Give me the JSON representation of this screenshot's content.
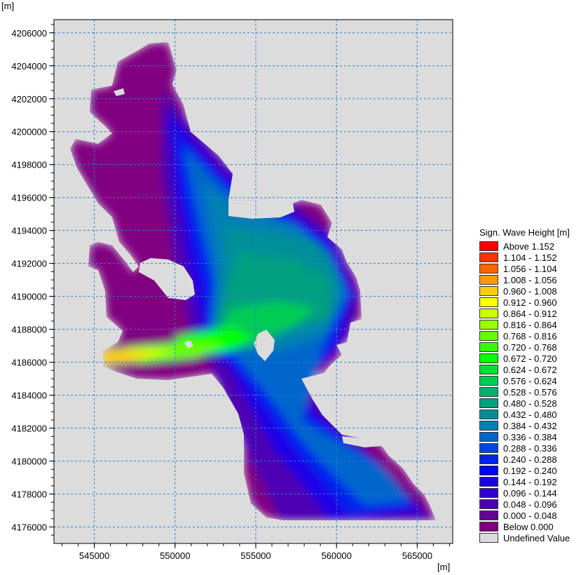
{
  "chart_data": {
    "type": "heatmap",
    "title": "",
    "x_unit": "[m]",
    "y_unit": "[m]",
    "xlim": [
      542500,
      567200
    ],
    "ylim": [
      4175000,
      4206800
    ],
    "x_ticks": [
      545000,
      550000,
      555000,
      560000,
      565000
    ],
    "x_tick_labels": [
      "545000",
      "550000",
      "555000",
      "560000",
      "565000"
    ],
    "y_ticks": [
      4176000,
      4178000,
      4180000,
      4182000,
      4184000,
      4186000,
      4188000,
      4190000,
      4192000,
      4194000,
      4196000,
      4198000,
      4200000,
      4202000,
      4204000,
      4206000
    ],
    "y_tick_labels": [
      "4176000",
      "4178000",
      "4180000",
      "4182000",
      "4184000",
      "4186000",
      "4188000",
      "4190000",
      "4192000",
      "4194000",
      "4196000",
      "4198000",
      "4200000",
      "4202000",
      "4204000",
      "4206000"
    ],
    "grid": true,
    "grid_style": "dashed",
    "grid_color": "#2b7fd6",
    "background_color": "#dcdcdc",
    "legend_position": "right",
    "legend": {
      "title": "Sign. Wave Height [m]",
      "entries": [
        {
          "label": "Above  1.152",
          "color": "#ff0000"
        },
        {
          "label": "1.104 - 1.152",
          "color": "#ff3300"
        },
        {
          "label": "1.056 - 1.104",
          "color": "#ff6600"
        },
        {
          "label": "1.008 - 1.056",
          "color": "#ff9900"
        },
        {
          "label": "0.960 - 1.008",
          "color": "#ffcc00"
        },
        {
          "label": "0.912 - 0.960",
          "color": "#ffff00"
        },
        {
          "label": "0.864 - 0.912",
          "color": "#ccff00"
        },
        {
          "label": "0.816 - 0.864",
          "color": "#99ff00"
        },
        {
          "label": "0.768 - 0.816",
          "color": "#66ff00"
        },
        {
          "label": "0.720 - 0.768",
          "color": "#33ff00"
        },
        {
          "label": "0.672 - 0.720",
          "color": "#00ff00"
        },
        {
          "label": "0.624 - 0.672",
          "color": "#00e033"
        },
        {
          "label": "0.576 - 0.624",
          "color": "#00cc55"
        },
        {
          "label": "0.528 - 0.576",
          "color": "#00b36f"
        },
        {
          "label": "0.480 - 0.528",
          "color": "#00a080"
        },
        {
          "label": "0.432 - 0.480",
          "color": "#008f99"
        },
        {
          "label": "0.384 - 0.432",
          "color": "#0080b3"
        },
        {
          "label": "0.336 - 0.384",
          "color": "#0066cc"
        },
        {
          "label": "0.288 - 0.336",
          "color": "#0044dd"
        },
        {
          "label": "0.240 - 0.288",
          "color": "#0022ee"
        },
        {
          "label": "0.192 - 0.240",
          "color": "#0000ff"
        },
        {
          "label": "0.144 - 0.192",
          "color": "#1a00e6"
        },
        {
          "label": "0.096 - 0.144",
          "color": "#3300cc"
        },
        {
          "label": "0.048 - 0.096",
          "color": "#4d00b3"
        },
        {
          "label": "0.000 - 0.048",
          "color": "#660099"
        },
        {
          "label": "Below  0.000",
          "color": "#800080"
        },
        {
          "label": "Undefined Value",
          "color": "#dcdcdc"
        }
      ]
    }
  }
}
